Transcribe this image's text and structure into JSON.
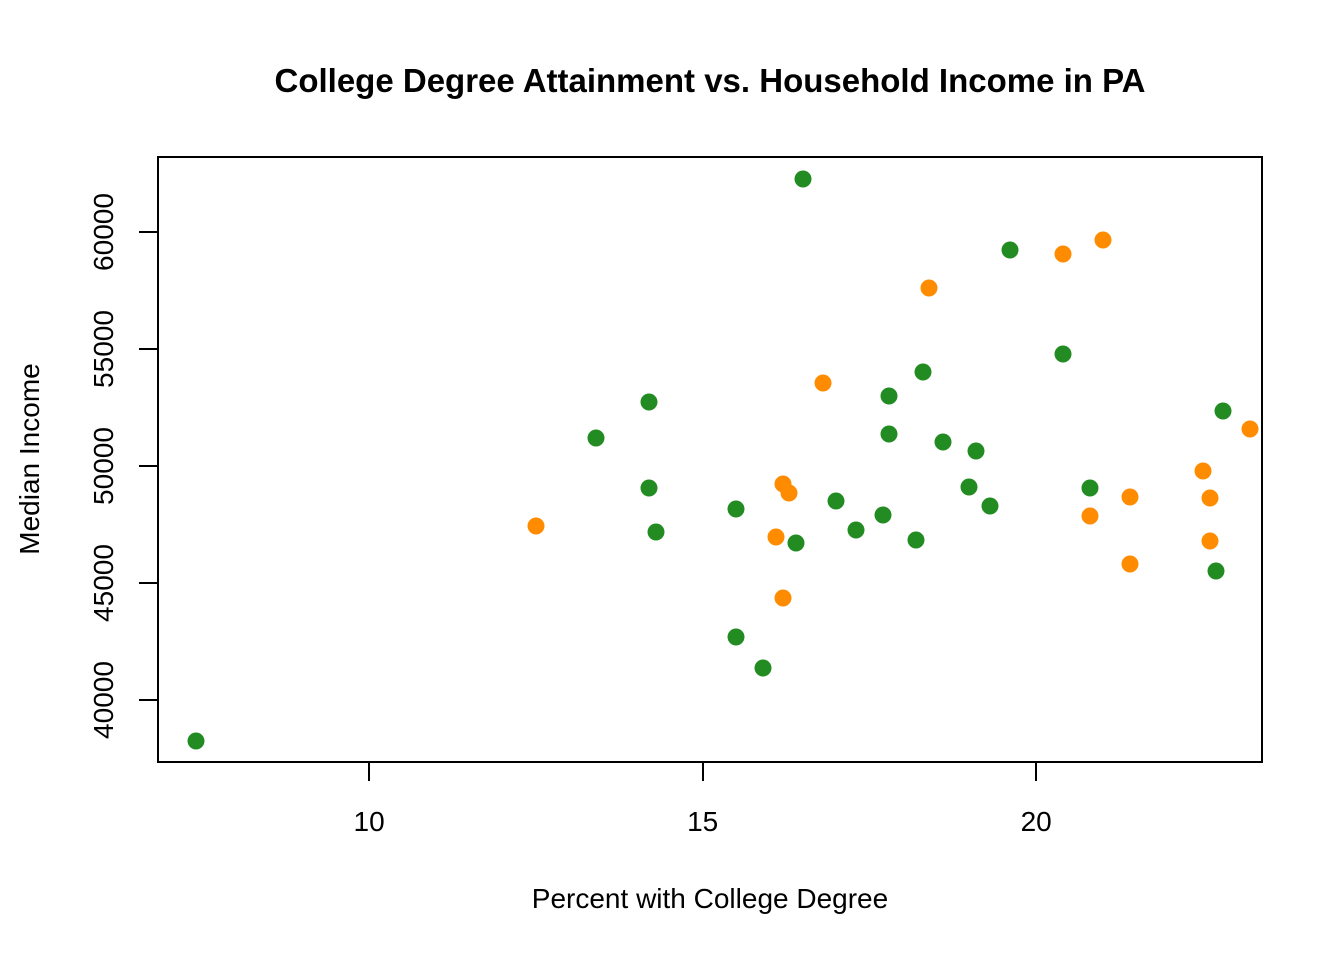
{
  "title": "College Degree Attainment vs. Household Income in PA",
  "axes": {
    "xlabel": "Percent with College Degree",
    "ylabel": "Median Income"
  },
  "chart_data": {
    "type": "scatter",
    "title": "College Degree Attainment vs. Household Income in PA",
    "xlabel": "Percent with College Degree",
    "ylabel": "Median Income",
    "xlim": [
      6.82,
      23.4
    ],
    "ylim": [
      37330,
      63230
    ],
    "x_ticks": [
      10,
      15,
      20
    ],
    "y_ticks": [
      40000,
      45000,
      50000,
      55000,
      60000
    ],
    "grid": false,
    "legend_position": "none",
    "colors": {
      "green": "#228B22",
      "orange": "#FF8C00"
    },
    "series": [
      {
        "name": "green",
        "color": "#228B22",
        "points": [
          [
            16.5,
            62260
          ],
          [
            19.6,
            59230
          ],
          [
            20.4,
            54770
          ],
          [
            18.3,
            54030
          ],
          [
            17.8,
            53000
          ],
          [
            14.2,
            52720
          ],
          [
            22.8,
            52350
          ],
          [
            17.8,
            51360
          ],
          [
            13.4,
            51190
          ],
          [
            18.6,
            51040
          ],
          [
            19.1,
            50630
          ],
          [
            19.0,
            49110
          ],
          [
            14.2,
            49050
          ],
          [
            20.8,
            49050
          ],
          [
            17.0,
            48500
          ],
          [
            19.3,
            48310
          ],
          [
            15.5,
            48160
          ],
          [
            17.7,
            47910
          ],
          [
            17.3,
            47290
          ],
          [
            14.3,
            47180
          ],
          [
            18.2,
            46850
          ],
          [
            16.4,
            46720
          ],
          [
            22.7,
            45530
          ],
          [
            15.5,
            42700
          ],
          [
            15.9,
            41390
          ],
          [
            7.4,
            38290
          ]
        ]
      },
      {
        "name": "orange",
        "color": "#FF8C00",
        "points": [
          [
            21.0,
            59650
          ],
          [
            20.4,
            59050
          ],
          [
            18.4,
            57600
          ],
          [
            16.8,
            53560
          ],
          [
            23.2,
            51570
          ],
          [
            22.5,
            49780
          ],
          [
            16.2,
            49240
          ],
          [
            16.3,
            48850
          ],
          [
            21.4,
            48700
          ],
          [
            22.6,
            48640
          ],
          [
            20.8,
            47860
          ],
          [
            12.5,
            47460
          ],
          [
            16.1,
            46960
          ],
          [
            22.6,
            46800
          ],
          [
            21.4,
            45820
          ],
          [
            16.2,
            44370
          ]
        ]
      }
    ]
  }
}
